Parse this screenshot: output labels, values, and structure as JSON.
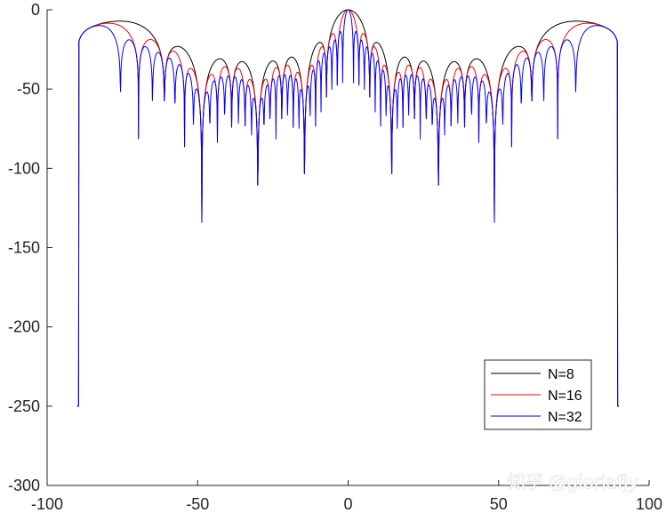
{
  "chart_data": {
    "type": "line",
    "title": "",
    "xlabel": "",
    "ylabel": "",
    "xlim": [
      -100,
      100
    ],
    "ylim": [
      -300,
      0
    ],
    "xticks": [
      -100,
      -50,
      0,
      50,
      100
    ],
    "yticks": [
      0,
      -50,
      -100,
      -150,
      -200,
      -250,
      -300
    ],
    "xtick_labels": [
      "-100",
      "-50",
      "0",
      "50",
      "100"
    ],
    "ytick_labels": [
      "0",
      "-50",
      "-100",
      "-150",
      "-200",
      "-250",
      "-300"
    ],
    "grid": false,
    "legend_position": "bottom-right",
    "series": [
      {
        "name": "N=8",
        "color": "#000000"
      },
      {
        "name": "N=16",
        "color": "#ff0000"
      },
      {
        "name": "N=32",
        "color": "#0000ff"
      }
    ]
  },
  "watermark": "知乎 @gloriafjy"
}
